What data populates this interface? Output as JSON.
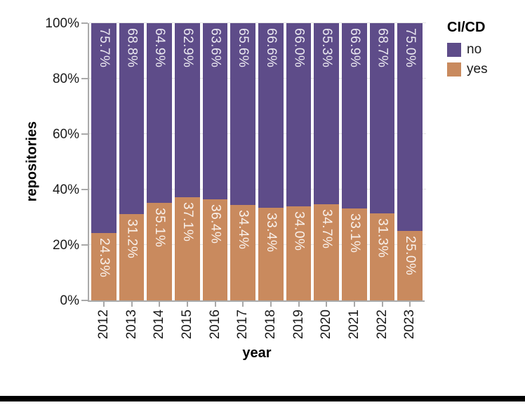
{
  "chart_data": {
    "type": "bar",
    "variant": "stacked-percentage",
    "title": "",
    "xlabel": "year",
    "ylabel": "repositories",
    "categories": [
      "2012",
      "2013",
      "2014",
      "2015",
      "2016",
      "2017",
      "2018",
      "2019",
      "2020",
      "2021",
      "2022",
      "2023"
    ],
    "series": [
      {
        "name": "no",
        "color": "#5e4c89",
        "values": [
          75.7,
          68.8,
          64.9,
          62.9,
          63.6,
          65.6,
          66.6,
          66.0,
          65.3,
          66.9,
          68.7,
          75.0
        ],
        "labels": [
          "75.7%",
          "68.8%",
          "64.9%",
          "62.9%",
          "63.6%",
          "65.6%",
          "66.6%",
          "66.0%",
          "65.3%",
          "66.9%",
          "68.7%",
          "75.0%"
        ]
      },
      {
        "name": "yes",
        "color": "#c98a5e",
        "values": [
          24.3,
          31.2,
          35.1,
          37.1,
          36.4,
          34.4,
          33.4,
          34.0,
          34.7,
          33.1,
          31.3,
          25.0
        ],
        "labels": [
          "24.3%",
          "31.2%",
          "35.1%",
          "37.1%",
          "36.4%",
          "34.4%",
          "33.4%",
          "34.0%",
          "34.7%",
          "33.1%",
          "31.3%",
          "25.0%"
        ]
      }
    ],
    "y_ticks": [
      "0%",
      "20%",
      "40%",
      "60%",
      "80%",
      "100%"
    ],
    "ylim": [
      0,
      100
    ],
    "grid": true,
    "legend": {
      "title": "CI/CD",
      "position": "right",
      "entries": [
        {
          "label": "no",
          "color": "#5e4c89"
        },
        {
          "label": "yes",
          "color": "#c98a5e"
        }
      ]
    }
  },
  "style": {
    "axis_color": "#a9a9a9",
    "grid_color": "#e3e3e3",
    "text_color": "#1a1a1a",
    "bar_label_color": "rgba(255,255,255,0.88)",
    "divider_color": "#000000",
    "background": "#ffffff"
  }
}
